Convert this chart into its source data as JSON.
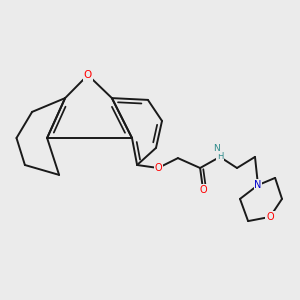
{
  "background_color": "#ebebeb",
  "bond_color": "#1a1a1a",
  "bond_width": 1.4,
  "atom_colors": {
    "O": "#ff0000",
    "N_morph": "#0000cc",
    "N_amide": "#2e8b8b",
    "C": "#1a1a1a"
  },
  "figsize": [
    3.0,
    3.0
  ],
  "dpi": 100,
  "xlim": [
    0,
    10
  ],
  "ylim": [
    0,
    10
  ]
}
